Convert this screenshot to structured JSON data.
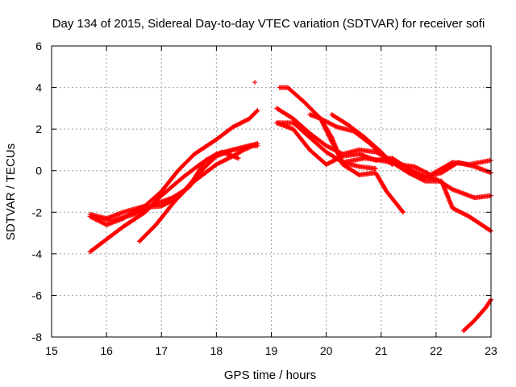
{
  "chart_data": {
    "type": "scatter",
    "title": "Day 134 of 2015, Sidereal Day-to-day VTEC variation (SDTVAR) for receiver sofi",
    "xlabel": "GPS time / hours",
    "ylabel": "SDTVAR / TECUs",
    "xlim": [
      15,
      23
    ],
    "ylim": [
      -8,
      6
    ],
    "xticks": [
      15,
      16,
      17,
      18,
      19,
      20,
      21,
      22,
      23
    ],
    "yticks": [
      -8,
      -6,
      -4,
      -2,
      0,
      2,
      4,
      6
    ],
    "grid": true,
    "marker": "+",
    "color": "#ff0000",
    "series": [
      {
        "name": "s1",
        "x": [
          15.7,
          16.0,
          16.3,
          16.7,
          17.0,
          17.3,
          17.6,
          18.0,
          18.3,
          18.6,
          18.75
        ],
        "y": [
          -2.1,
          -2.3,
          -2.0,
          -1.7,
          -1.0,
          0.0,
          0.8,
          1.5,
          2.1,
          2.5,
          2.9
        ]
      },
      {
        "name": "s2",
        "x": [
          15.7,
          16.0,
          16.3,
          16.7,
          17.0,
          17.4,
          17.7,
          18.0,
          18.3,
          18.6,
          18.75
        ],
        "y": [
          -3.9,
          -3.3,
          -2.7,
          -2.0,
          -1.2,
          -0.3,
          0.3,
          0.8,
          1.0,
          1.2,
          1.3
        ]
      },
      {
        "name": "s3",
        "x": [
          15.7,
          16.0,
          16.3,
          16.6,
          17.0,
          17.3,
          17.6,
          18.0,
          18.3,
          18.5,
          18.75
        ],
        "y": [
          -2.2,
          -2.6,
          -2.3,
          -1.8,
          -1.7,
          -1.3,
          -0.5,
          0.3,
          0.7,
          1.0,
          1.3
        ]
      },
      {
        "name": "s4",
        "x": [
          16.6,
          16.9,
          17.2,
          17.5,
          17.8,
          18.0,
          18.3,
          18.6,
          18.75
        ],
        "y": [
          -3.4,
          -2.6,
          -1.6,
          -0.7,
          0.2,
          0.7,
          1.0,
          1.2,
          1.2
        ]
      },
      {
        "name": "s5",
        "x": [
          15.7,
          16.1,
          16.5,
          16.9,
          17.2,
          17.5,
          17.8,
          18.1,
          18.4
        ],
        "y": [
          -2.2,
          -2.4,
          -2.1,
          -1.6,
          -1.3,
          -0.8,
          0.5,
          0.9,
          0.6
        ]
      },
      {
        "name": "s6",
        "x": [
          18.7
        ],
        "y": [
          4.25
        ]
      },
      {
        "name": "s7",
        "x": [
          19.15,
          19.3,
          19.6,
          19.9,
          20.2,
          20.5,
          20.8,
          21.0,
          21.2,
          21.5,
          21.8,
          22.1,
          22.3,
          22.6,
          23.0
        ],
        "y": [
          4.0,
          4.0,
          3.3,
          2.5,
          2.1,
          1.9,
          1.3,
          0.8,
          0.4,
          -0.1,
          -0.5,
          -0.5,
          -1.8,
          -2.2,
          -2.9
        ]
      },
      {
        "name": "s8",
        "x": [
          19.1,
          19.4,
          19.7,
          20.0,
          20.3,
          20.6,
          20.9,
          21.2,
          21.5,
          21.8,
          22.0,
          22.3,
          22.7,
          23.0
        ],
        "y": [
          3.0,
          2.5,
          1.8,
          1.2,
          0.8,
          1.0,
          0.9,
          0.5,
          0.0,
          -0.3,
          -0.4,
          -0.9,
          -1.3,
          -1.2
        ]
      },
      {
        "name": "s9",
        "x": [
          19.1,
          19.4,
          19.7,
          20.0,
          20.3,
          20.7,
          21.0,
          21.3,
          21.6,
          21.9,
          22.1,
          22.3,
          22.6,
          23.0
        ],
        "y": [
          2.3,
          2.3,
          1.6,
          0.9,
          0.4,
          0.6,
          0.5,
          0.3,
          0.2,
          -0.2,
          0.1,
          0.4,
          0.3,
          0.5
        ]
      },
      {
        "name": "s10",
        "x": [
          19.1,
          19.4,
          19.7,
          20.0,
          20.3,
          20.6,
          20.9,
          21.2,
          21.5,
          21.8,
          22.1,
          22.4,
          22.7,
          23.0
        ],
        "y": [
          2.3,
          2.0,
          1.0,
          0.3,
          0.7,
          0.8,
          0.5,
          0.6,
          0.1,
          -0.3,
          -0.1,
          0.4,
          0.2,
          -0.1
        ]
      },
      {
        "name": "s11",
        "x": [
          19.7,
          19.9,
          20.1,
          20.3,
          20.6,
          20.9,
          21.1,
          21.4
        ],
        "y": [
          2.7,
          2.5,
          1.6,
          0.3,
          -0.2,
          -0.1,
          -1.0,
          -2.0
        ]
      },
      {
        "name": "s12",
        "x": [
          19.9,
          20.1,
          20.3,
          20.6,
          20.9
        ],
        "y": [
          2.5,
          1.4,
          0.4,
          0.2,
          0.1
        ]
      },
      {
        "name": "s13",
        "x": [
          20.1,
          20.4,
          20.7,
          21.0,
          21.2
        ],
        "y": [
          2.7,
          2.2,
          1.6,
          0.9,
          0.3
        ]
      },
      {
        "name": "s14",
        "x": [
          22.5,
          22.7,
          22.9,
          23.0
        ],
        "y": [
          -7.7,
          -7.2,
          -6.6,
          -6.2
        ]
      }
    ]
  }
}
